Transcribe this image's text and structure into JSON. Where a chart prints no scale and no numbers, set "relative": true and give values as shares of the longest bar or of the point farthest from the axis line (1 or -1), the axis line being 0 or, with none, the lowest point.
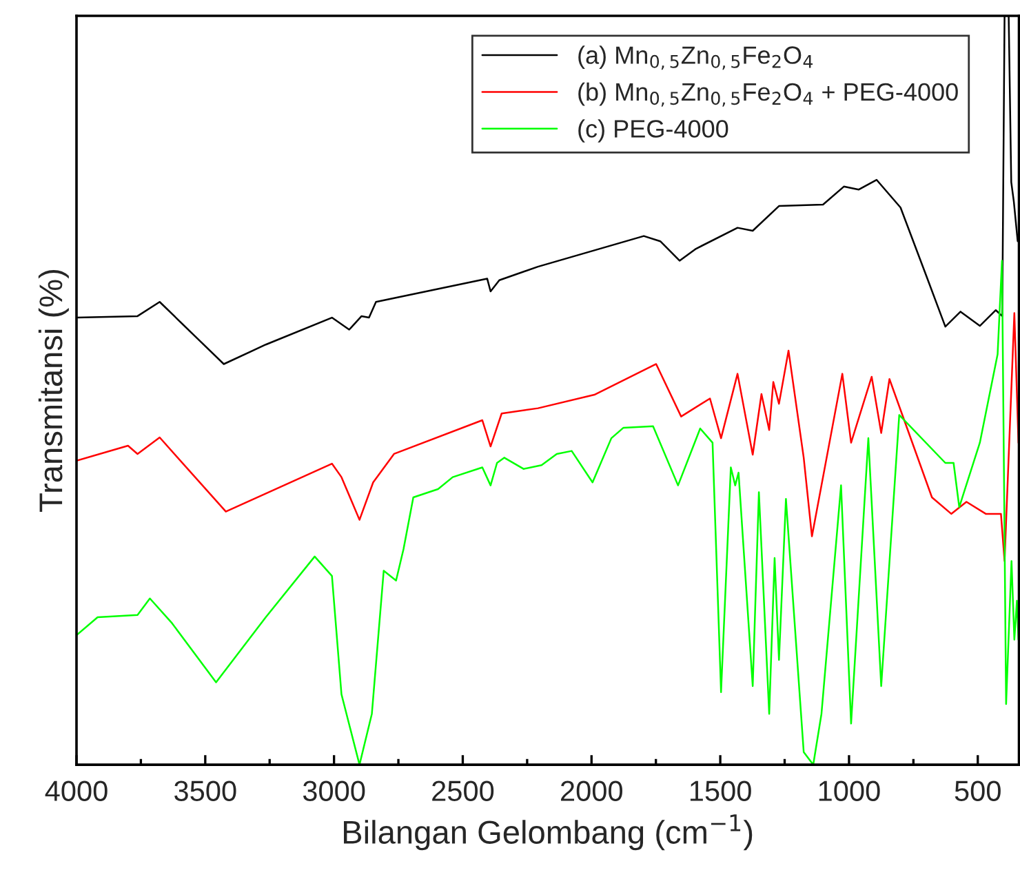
{
  "chart_data": {
    "type": "line",
    "relative": true,
    "xlabel": "Bilangan Gelombang (cm$^{−1}$)",
    "ylabel": "Transmitansi (%)",
    "xlim": [
      4000,
      340
    ],
    "xticks": [
      4000,
      {
        "value": 3750,
        "label": null
      },
      3500,
      {
        "value": 3250,
        "label": null
      },
      3000,
      {
        "value": 2750,
        "label": null
      },
      2500,
      {
        "value": 2250,
        "label": null
      },
      2000,
      {
        "value": 1750,
        "label": null
      },
      1500,
      {
        "value": 1250,
        "label": null
      },
      1000,
      {
        "value": 750,
        "label": null
      },
      500
    ],
    "grid": false,
    "legend": "top right",
    "marker": "none",
    "line_style": "solid",
    "series": [
      {
        "name": "(a) Mn$_{0,5}$Zn$_{0,5}$Fe$_{2}$O$_{4}$",
        "color": "#000000",
        "x": [
          4000,
          3763,
          3677,
          3428,
          3265,
          3008,
          2941,
          2893,
          2864,
          2837,
          2405,
          2392,
          2358,
          2208,
          1797,
          1733,
          1658,
          1594,
          1433,
          1374,
          1272,
          1101,
          1020,
          962,
          893,
          800,
          700,
          626,
          567,
          492,
          430,
          405,
          396,
          380,
          370,
          360,
          345
        ],
        "values": [
          0.597,
          0.599,
          0.618,
          0.535,
          0.561,
          0.597,
          0.581,
          0.599,
          0.597,
          0.618,
          0.649,
          0.632,
          0.647,
          0.665,
          0.706,
          0.699,
          0.673,
          0.689,
          0.717,
          0.713,
          0.746,
          0.748,
          0.772,
          0.768,
          0.781,
          0.744,
          0.653,
          0.585,
          0.605,
          0.586,
          0.607,
          0.599,
          1.0,
          1.0,
          0.778,
          0.752,
          0.699
        ]
      },
      {
        "name": "(b) Mn$_{0,5}$Zn$_{0,5}$Fe$_{2}$O$_{4}$ + PEG-4000",
        "color": "#ff0000",
        "x": [
          4000,
          3800,
          3763,
          3677,
          3420,
          3008,
          2971,
          2901,
          2848,
          2767,
          2424,
          2392,
          2349,
          2208,
          1989,
          1749,
          1652,
          1540,
          1497,
          1433,
          1374,
          1340,
          1310,
          1294,
          1272,
          1235,
          1176,
          1144,
          1026,
          992,
          912,
          875,
          843,
          678,
          603,
          544,
          469,
          410,
          396,
          358,
          342
        ],
        "values": [
          0.406,
          0.426,
          0.415,
          0.437,
          0.338,
          0.402,
          0.384,
          0.327,
          0.377,
          0.415,
          0.46,
          0.425,
          0.469,
          0.476,
          0.494,
          0.535,
          0.465,
          0.489,
          0.436,
          0.522,
          0.414,
          0.495,
          0.447,
          0.511,
          0.482,
          0.553,
          0.41,
          0.305,
          0.522,
          0.43,
          0.518,
          0.443,
          0.515,
          0.357,
          0.335,
          0.351,
          0.335,
          0.335,
          0.272,
          0.603,
          0.43
        ]
      },
      {
        "name": "(c) PEG-4000",
        "color": "#00ff00",
        "x": [
          4000,
          3918,
          3763,
          3715,
          3629,
          3458,
          3265,
          3075,
          3008,
          2971,
          2901,
          2853,
          2807,
          2759,
          2730,
          2692,
          2596,
          2539,
          2424,
          2392,
          2367,
          2339,
          2264,
          2194,
          2135,
          2077,
          1996,
          1923,
          1876,
          1761,
          1664,
          1578,
          1530,
          1497,
          1459,
          1442,
          1429,
          1374,
          1350,
          1310,
          1289,
          1272,
          1245,
          1176,
          1139,
          1107,
          1031,
          992,
          925,
          875,
          805,
          626,
          594,
          572,
          492,
          423,
          406,
          390,
          369,
          358,
          348,
          342
        ],
        "values": [
          0.173,
          0.197,
          0.2,
          0.222,
          0.189,
          0.11,
          0.197,
          0.278,
          0.252,
          0.094,
          0.0,
          0.068,
          0.259,
          0.246,
          0.288,
          0.357,
          0.368,
          0.384,
          0.397,
          0.373,
          0.403,
          0.41,
          0.395,
          0.4,
          0.415,
          0.419,
          0.377,
          0.436,
          0.45,
          0.452,
          0.373,
          0.449,
          0.43,
          0.097,
          0.397,
          0.373,
          0.39,
          0.105,
          0.364,
          0.068,
          0.276,
          0.14,
          0.355,
          0.017,
          0.0,
          0.068,
          0.373,
          0.055,
          0.436,
          0.105,
          0.467,
          0.403,
          0.403,
          0.344,
          0.43,
          0.548,
          0.673,
          0.081,
          0.272,
          0.167,
          0.219,
          0.167
        ]
      }
    ]
  }
}
